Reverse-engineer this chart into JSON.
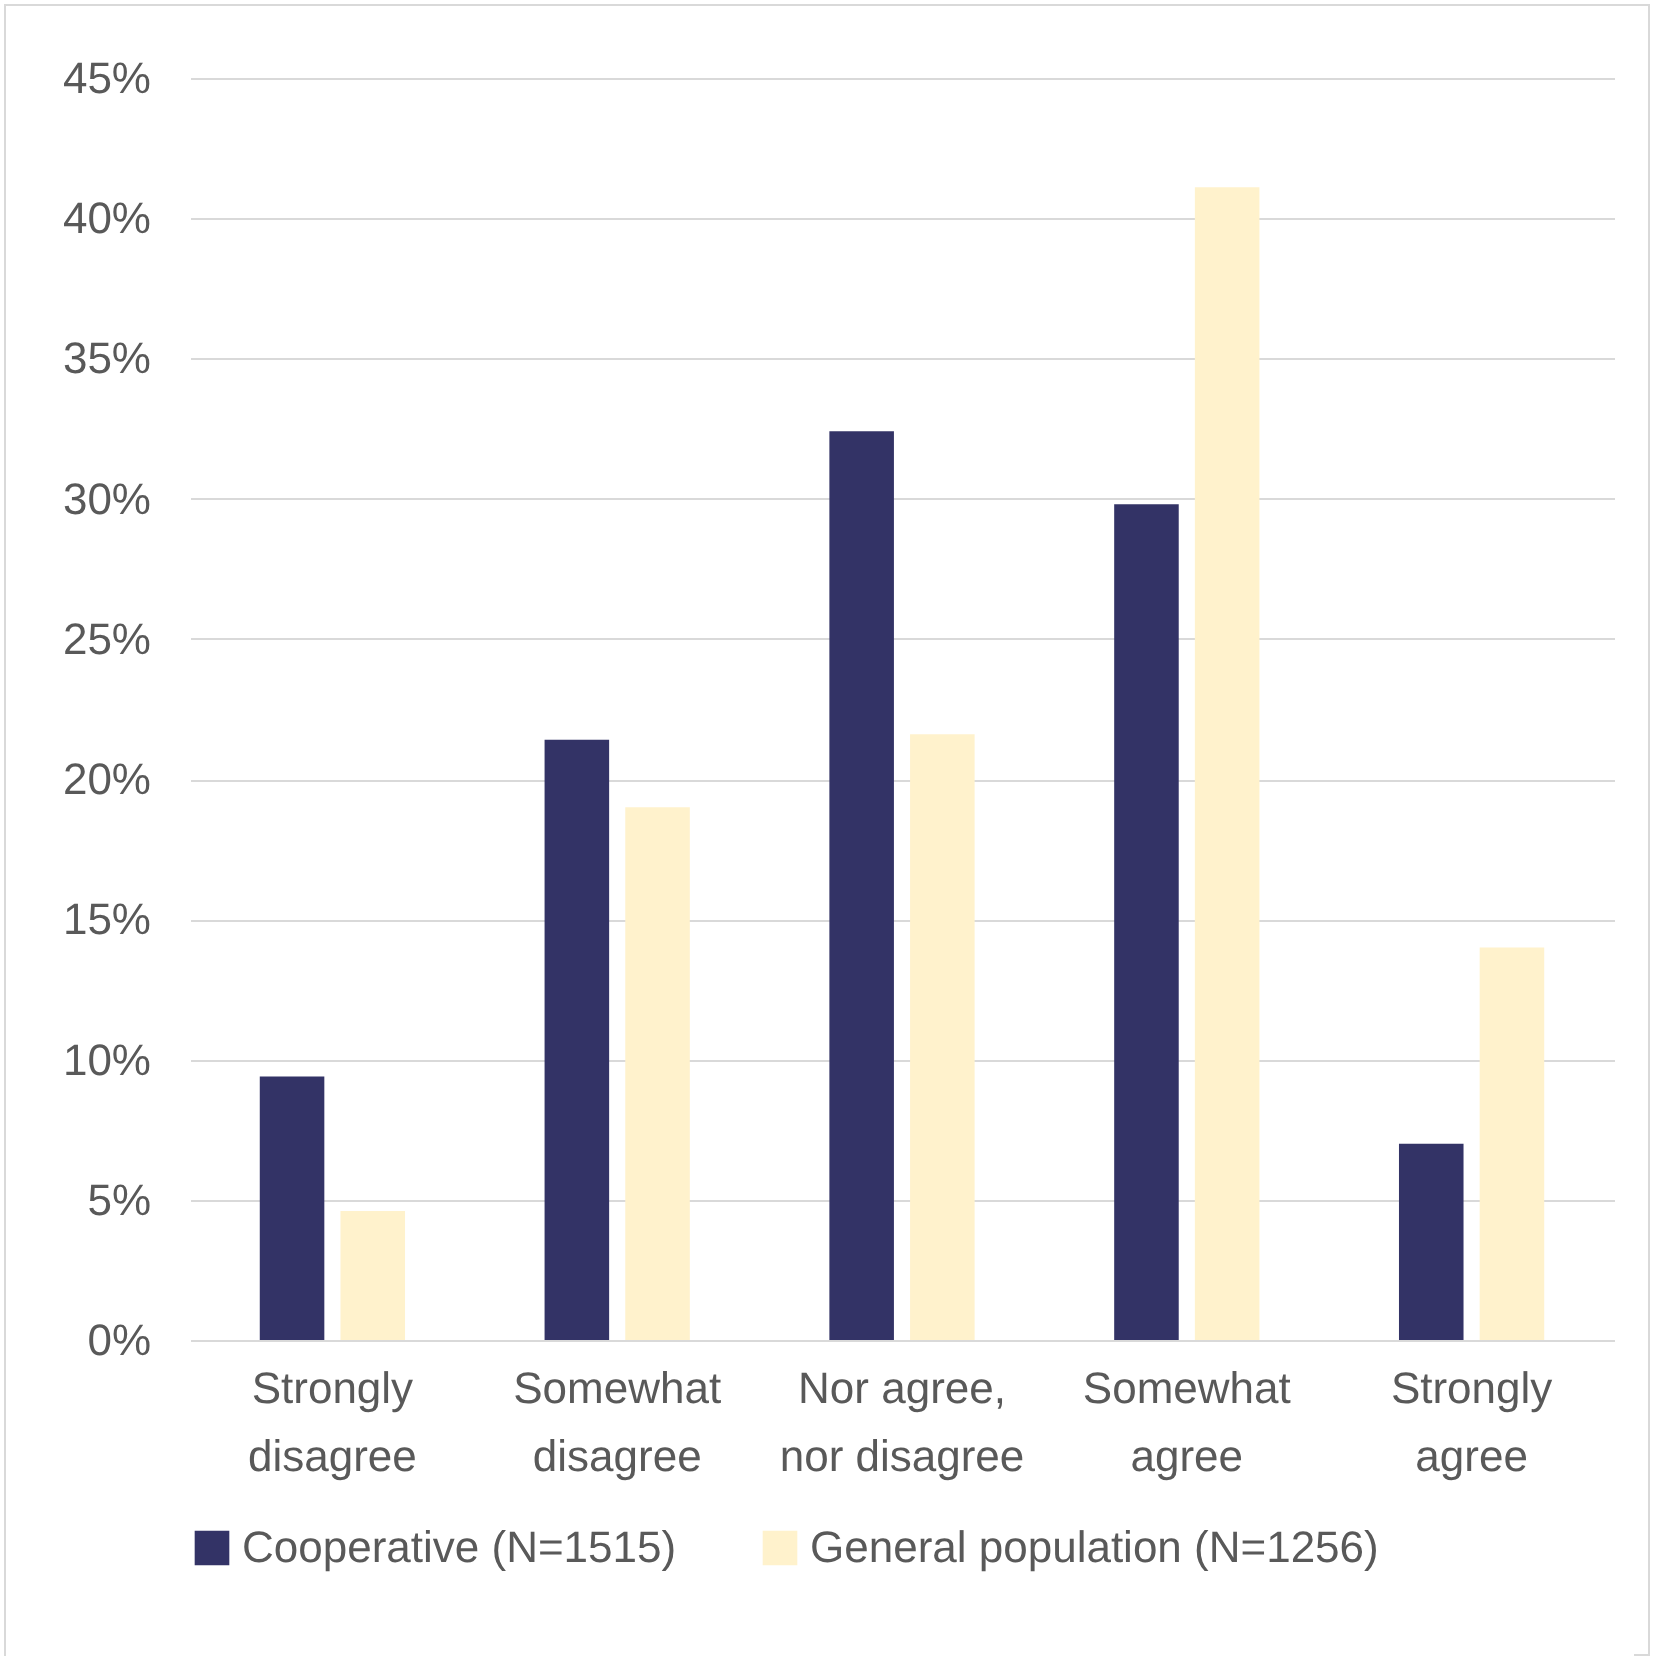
{
  "chart_data": {
    "type": "bar",
    "categories": [
      "Strongly disagree",
      "Somewhat disagree",
      "Nor agree, nor disagree",
      "Somewhat agree",
      "Strongly agree"
    ],
    "series": [
      {
        "name": "Cooperative (N=1515)",
        "color": "#333366",
        "values": [
          9.4,
          21.4,
          32.4,
          29.8,
          7.0
        ]
      },
      {
        "name": "General population (N=1256)",
        "color": "#fff2cc",
        "values": [
          4.6,
          19.0,
          21.6,
          41.1,
          14.0
        ]
      }
    ],
    "ylim": [
      0,
      45
    ],
    "yticks": [
      {
        "value": 0,
        "label": "0%"
      },
      {
        "value": 5,
        "label": "5%"
      },
      {
        "value": 10,
        "label": "10%"
      },
      {
        "value": 15,
        "label": "15%"
      },
      {
        "value": 20,
        "label": "20%"
      },
      {
        "value": 25,
        "label": "25%"
      },
      {
        "value": 30,
        "label": "30%"
      },
      {
        "value": 35,
        "label": "35%"
      },
      {
        "value": 40,
        "label": "40%"
      },
      {
        "value": 45,
        "label": "45%"
      }
    ],
    "grid": "y",
    "legend": "bottom"
  }
}
